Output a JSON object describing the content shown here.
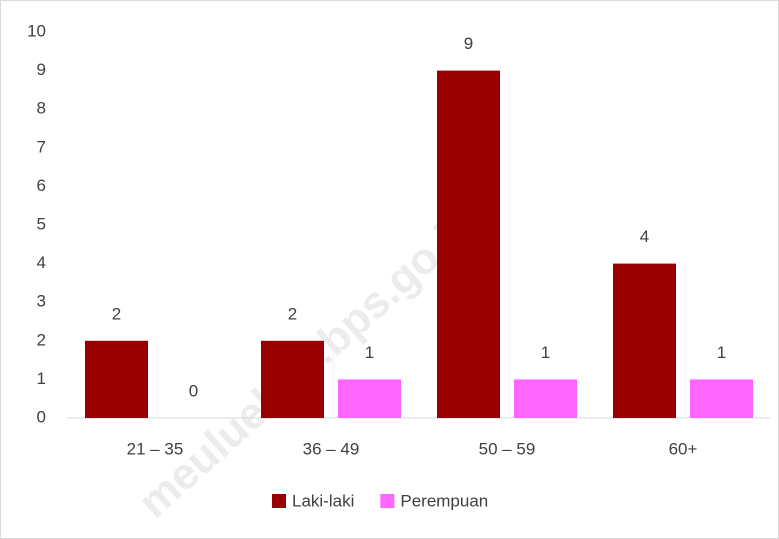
{
  "chart_data": {
    "type": "bar",
    "categories": [
      "21 – 35",
      "36 – 49",
      "50 – 59",
      "60+"
    ],
    "series": [
      {
        "name": "Laki-laki",
        "color": "#990000",
        "values": [
          2,
          2,
          9,
          4
        ]
      },
      {
        "name": "Perempuan",
        "color": "#ff66ff",
        "values": [
          0,
          1,
          1,
          1
        ]
      }
    ],
    "ylim": [
      0,
      10
    ],
    "yticks": [
      0,
      1,
      2,
      3,
      4,
      5,
      6,
      7,
      8,
      9,
      10
    ],
    "grid": false,
    "legend": "bottom",
    "watermark": "meuluekab.bps.go.id"
  }
}
